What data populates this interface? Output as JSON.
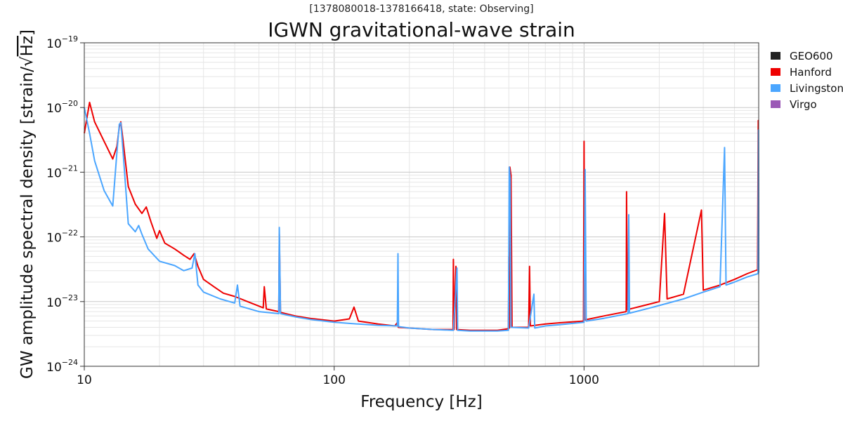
{
  "chart_data": {
    "type": "line",
    "subtitle": "[1378080018-1378166418, state: Observing]",
    "title": "IGWN gravitational-wave strain",
    "xlabel": "Frequency [Hz]",
    "ylabel_prefix": "GW amplitude spectral density [strain/",
    "ylabel_radical": "√",
    "ylabel_unit": "Hz",
    "ylabel_suffix": "]",
    "xscale": "log",
    "yscale": "log",
    "xlim": [
      10,
      5000
    ],
    "ylim": [
      1e-24,
      1e-19
    ],
    "x_ticks": [
      {
        "value": 10,
        "label": "10"
      },
      {
        "value": 100,
        "label": "100"
      },
      {
        "value": 1000,
        "label": "1000"
      }
    ],
    "y_ticks": [
      {
        "value": 1e-24,
        "base": "10",
        "exp": "−24"
      },
      {
        "value": 1e-23,
        "base": "10",
        "exp": "−23"
      },
      {
        "value": 1e-22,
        "base": "10",
        "exp": "−22"
      },
      {
        "value": 1e-21,
        "base": "10",
        "exp": "−21"
      },
      {
        "value": 1e-20,
        "base": "10",
        "exp": "−20"
      },
      {
        "value": 1e-19,
        "base": "10",
        "exp": "−19"
      }
    ],
    "grid": true,
    "legend_position": "outside-right",
    "series": [
      {
        "name": "GEO600",
        "color": "#222222",
        "points": []
      },
      {
        "name": "Hanford",
        "color": "#ee0000",
        "points": [
          [
            10,
            4e-21
          ],
          [
            10.5,
            1.2e-20
          ],
          [
            11,
            6e-21
          ],
          [
            12,
            3e-21
          ],
          [
            13,
            1.6e-21
          ],
          [
            13.5,
            2.5e-21
          ],
          [
            13.8,
            5e-21
          ],
          [
            14,
            6e-21
          ],
          [
            14.3,
            3e-21
          ],
          [
            15,
            6e-22
          ],
          [
            16,
            3.2e-22
          ],
          [
            17,
            2.3e-22
          ],
          [
            17.7,
            2.9e-22
          ],
          [
            18.5,
            1.7e-22
          ],
          [
            19.5,
            9.5e-23
          ],
          [
            20,
            1.25e-22
          ],
          [
            21,
            8e-23
          ],
          [
            23,
            6.5e-23
          ],
          [
            25,
            5.2e-23
          ],
          [
            26.5,
            4.5e-23
          ],
          [
            27.5,
            5.5e-23
          ],
          [
            28.5,
            3.5e-23
          ],
          [
            30,
            2.2e-23
          ],
          [
            33,
            1.7e-23
          ],
          [
            36,
            1.35e-23
          ],
          [
            40,
            1.2e-23
          ],
          [
            45,
            1e-23
          ],
          [
            52,
            8e-24
          ],
          [
            52.5,
            1.7e-23
          ],
          [
            53.5,
            7.7e-24
          ],
          [
            60,
            7e-24
          ],
          [
            60.3,
            1.1e-22
          ],
          [
            61,
            6.8e-24
          ],
          [
            70,
            6e-24
          ],
          [
            80,
            5.5e-24
          ],
          [
            100,
            5e-24
          ],
          [
            115,
            5.4e-24
          ],
          [
            120,
            8.2e-24
          ],
          [
            125,
            5e-24
          ],
          [
            150,
            4.5e-24
          ],
          [
            175,
            4.2e-24
          ],
          [
            180,
            4.9e-24
          ],
          [
            180.5,
            4e-24
          ],
          [
            200,
            3.9e-24
          ],
          [
            250,
            3.7e-24
          ],
          [
            299,
            3.7e-24
          ],
          [
            300,
            4.5e-23
          ],
          [
            302,
            3.7e-24
          ],
          [
            307,
            3.5e-23
          ],
          [
            309,
            3.7e-24
          ],
          [
            350,
            3.6e-24
          ],
          [
            400,
            3.6e-24
          ],
          [
            450,
            3.6e-24
          ],
          [
            498,
            3.8e-24
          ],
          [
            500,
            5e-23
          ],
          [
            503,
            3.9e-24
          ],
          [
            505,
            1.2e-21
          ],
          [
            510,
            9e-22
          ],
          [
            515,
            4e-24
          ],
          [
            600,
            4e-24
          ],
          [
            605,
            3.5e-23
          ],
          [
            610,
            4.2e-24
          ],
          [
            700,
            4.5e-24
          ],
          [
            800,
            4.7e-24
          ],
          [
            995,
            5e-24
          ],
          [
            1000,
            3e-21
          ],
          [
            1005,
            5.2e-24
          ],
          [
            1200,
            6e-24
          ],
          [
            1475,
            7e-24
          ],
          [
            1480,
            5e-22
          ],
          [
            1490,
            7.5e-24
          ],
          [
            1800,
            9e-24
          ],
          [
            2000,
            1e-23
          ],
          [
            2100,
            2.3e-22
          ],
          [
            2150,
            1.1e-23
          ],
          [
            2500,
            1.3e-23
          ],
          [
            2950,
            2.6e-22
          ],
          [
            3000,
            1.5e-23
          ],
          [
            3500,
            1.8e-23
          ],
          [
            4000,
            2.2e-23
          ],
          [
            4500,
            2.7e-23
          ],
          [
            4950,
            3.1e-23
          ],
          [
            4980,
            6.3e-21
          ],
          [
            5000,
            3.3e-23
          ]
        ]
      },
      {
        "name": "Livingston",
        "color": "#4ba6ff",
        "points": [
          [
            10,
            1e-20
          ],
          [
            10.5,
            4e-21
          ],
          [
            11,
            1.5e-21
          ],
          [
            12,
            5.2e-22
          ],
          [
            13,
            3e-22
          ],
          [
            13.5,
            2e-21
          ],
          [
            13.8,
            5.5e-21
          ],
          [
            14,
            5.8e-21
          ],
          [
            14.3,
            2e-21
          ],
          [
            15,
            1.6e-22
          ],
          [
            16,
            1.2e-22
          ],
          [
            16.5,
            1.5e-22
          ],
          [
            17,
            1.1e-22
          ],
          [
            18,
            6.5e-23
          ],
          [
            20,
            4.2e-23
          ],
          [
            23,
            3.6e-23
          ],
          [
            25,
            3e-23
          ],
          [
            27,
            3.3e-23
          ],
          [
            27.7,
            5.5e-23
          ],
          [
            28.5,
            1.8e-23
          ],
          [
            30,
            1.4e-23
          ],
          [
            35,
            1.1e-23
          ],
          [
            40,
            9.5e-24
          ],
          [
            41,
            1.8e-23
          ],
          [
            42,
            8.5e-24
          ],
          [
            50,
            7e-24
          ],
          [
            60,
            6.5e-24
          ],
          [
            60.3,
            1.4e-22
          ],
          [
            61,
            6.5e-24
          ],
          [
            70,
            5.8e-24
          ],
          [
            80,
            5.3e-24
          ],
          [
            100,
            4.8e-24
          ],
          [
            125,
            4.5e-24
          ],
          [
            150,
            4.3e-24
          ],
          [
            179,
            4.2e-24
          ],
          [
            180,
            5.5e-23
          ],
          [
            181,
            4.1e-24
          ],
          [
            200,
            3.9e-24
          ],
          [
            250,
            3.7e-24
          ],
          [
            300,
            3.6e-24
          ],
          [
            310,
            3.3e-23
          ],
          [
            312,
            3.6e-24
          ],
          [
            350,
            3.5e-24
          ],
          [
            400,
            3.5e-24
          ],
          [
            450,
            3.5e-24
          ],
          [
            498,
            3.6e-24
          ],
          [
            502,
            1.2e-21
          ],
          [
            506,
            8e-22
          ],
          [
            510,
            4e-24
          ],
          [
            600,
            3.9e-24
          ],
          [
            630,
            1.3e-23
          ],
          [
            635,
            3.9e-24
          ],
          [
            700,
            4.2e-24
          ],
          [
            800,
            4.4e-24
          ],
          [
            1000,
            4.8e-24
          ],
          [
            1010,
            1.1e-21
          ],
          [
            1020,
            5e-24
          ],
          [
            1200,
            5.5e-24
          ],
          [
            1500,
            6.5e-24
          ],
          [
            1510,
            2.2e-22
          ],
          [
            1520,
            6.6e-24
          ],
          [
            1800,
            7.8e-24
          ],
          [
            2000,
            8.7e-24
          ],
          [
            2500,
            1.1e-23
          ],
          [
            3000,
            1.4e-23
          ],
          [
            3500,
            1.7e-23
          ],
          [
            3650,
            2.4e-21
          ],
          [
            3700,
            1.8e-23
          ],
          [
            4000,
            2e-23
          ],
          [
            4500,
            2.4e-23
          ],
          [
            4970,
            2.7e-23
          ],
          [
            4990,
            4.5e-21
          ],
          [
            5000,
            2.8e-23
          ]
        ]
      },
      {
        "name": "Virgo",
        "color": "#9b59b6",
        "points": []
      }
    ]
  }
}
